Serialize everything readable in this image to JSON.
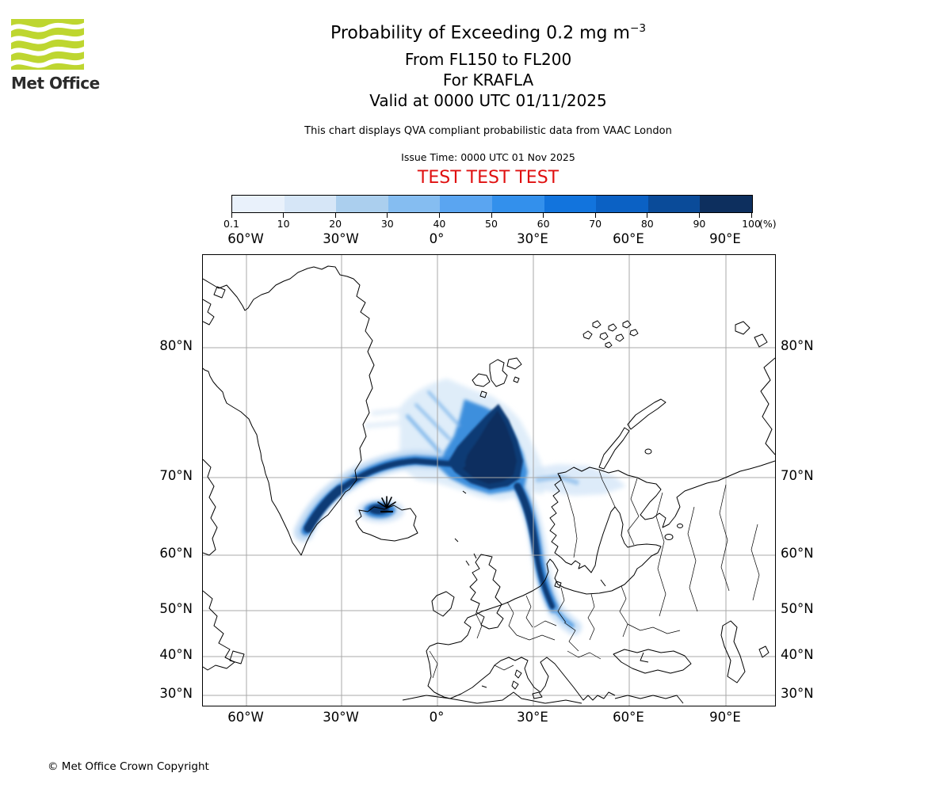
{
  "brand": {
    "name": "Met Office",
    "logo_green": "#bed630"
  },
  "header": {
    "title_main": "Probability of Exceeding 0.2 mg m",
    "title_sup": "−3",
    "line2": "From FL150 to FL200",
    "line3": "For KRAFLA",
    "line4": "Valid at 0000 UTC 01/11/2025",
    "note": "This chart displays QVA compliant probabilistic data from VAAC London",
    "issue_time": "Issue Time: 0000 UTC 01 Nov 2025",
    "test_banner": "TEST TEST TEST",
    "test_color": "#e01010"
  },
  "colorbar": {
    "unit_label": "(%)",
    "tick_labels": [
      "0.1",
      "10",
      "20",
      "30",
      "40",
      "50",
      "60",
      "70",
      "80",
      "90",
      "100"
    ],
    "colors": [
      "#e9f1fb",
      "#d6e6f7",
      "#abcfee",
      "#85bdf1",
      "#5aa5f1",
      "#3390ec",
      "#1274dd",
      "#0b61c4",
      "#0a4b99",
      "#0d2f5e"
    ]
  },
  "map": {
    "lon_labels": [
      "60°W",
      "30°W",
      "0°",
      "30°E",
      "60°E",
      "90°E"
    ],
    "lat_labels": [
      "80°N",
      "70°N",
      "60°N",
      "50°N",
      "40°N",
      "30°N"
    ],
    "volcano_marker": "KRAFLA eruption source marker over north-east Iceland",
    "gridline_color": "#a8a8a8",
    "coastline_color": "#000000"
  },
  "footer": {
    "copyright": "© Met Office Crown Copyright"
  },
  "chart_data": {
    "type": "heatmap",
    "title": "Probability of Exceeding 0.2 mg m−3",
    "flight_levels": "From FL150 to FL200",
    "volcano": "KRAFLA",
    "valid_at": "0000 UTC 01/11/2025",
    "issue_time": "0000 UTC 01 Nov 2025",
    "source_note": "QVA compliant probabilistic data from VAAC London",
    "colorbar_boundaries_percent": [
      0.1,
      10,
      20,
      30,
      40,
      50,
      60,
      70,
      80,
      90,
      100
    ],
    "colorbar_colors": [
      "#e9f1fb",
      "#d6e6f7",
      "#abcfee",
      "#85bdf1",
      "#5aa5f1",
      "#3390ec",
      "#1274dd",
      "#0b61c4",
      "#0a4b99",
      "#0d2f5e"
    ],
    "x_axis": {
      "label": "longitude",
      "ticks": [
        "60°W",
        "30°W",
        "0°",
        "30°E",
        "60°E",
        "90°E"
      ]
    },
    "y_axis": {
      "label": "latitude",
      "ticks": [
        "80°N",
        "70°N",
        "60°N",
        "50°N",
        "40°N",
        "30°N"
      ]
    },
    "legend_position": "top horizontal colorbar",
    "grid": true,
    "plume_regions": [
      {
        "region": "Norwegian Sea / Barents Sea north of Norway, ~0°–30°E, 70°–76°N (triangular fan, apex near 77°N)",
        "probability_percent": "60–100"
      },
      {
        "region": "Curved band from SE Greenland coast (~38°W, 65°N) across north Iceland to the Norwegian Sea at ~70°N",
        "probability_percent": "40–100"
      },
      {
        "region": "Blob over north-east Iceland surrounding the KRAFLA source marker",
        "probability_percent": "60–100"
      },
      {
        "region": "Narrow tail south over northern Norway, Sweden, Finland and the Baltic states, ending near 50°N, 33°E",
        "probability_percent": "30–90"
      },
      {
        "region": "Diffuse fringes north-west toward the Greenland Sea and east toward the Kola Peninsula",
        "probability_percent": "0.1–20"
      }
    ]
  }
}
